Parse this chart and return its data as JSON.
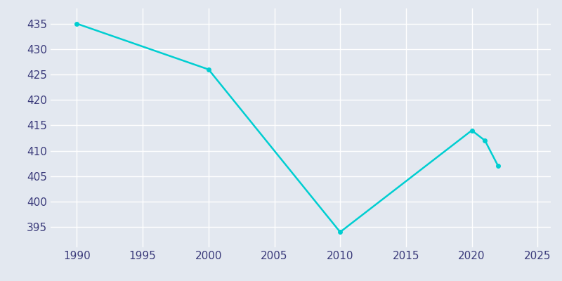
{
  "years": [
    1990,
    2000,
    2010,
    2020,
    2021,
    2022
  ],
  "population": [
    435,
    426,
    394,
    414,
    412,
    407
  ],
  "line_color": "#00CED1",
  "marker_color": "#00CED1",
  "background_color": "#e3e8f0",
  "grid_color": "#ffffff",
  "xlim": [
    1988,
    2026
  ],
  "ylim": [
    391,
    438
  ],
  "xticks": [
    1990,
    1995,
    2000,
    2005,
    2010,
    2015,
    2020,
    2025
  ],
  "yticks": [
    395,
    400,
    405,
    410,
    415,
    420,
    425,
    430,
    435
  ],
  "tick_label_color": "#3a3a7a",
  "tick_fontsize": 11,
  "linewidth": 1.8,
  "markersize": 4
}
